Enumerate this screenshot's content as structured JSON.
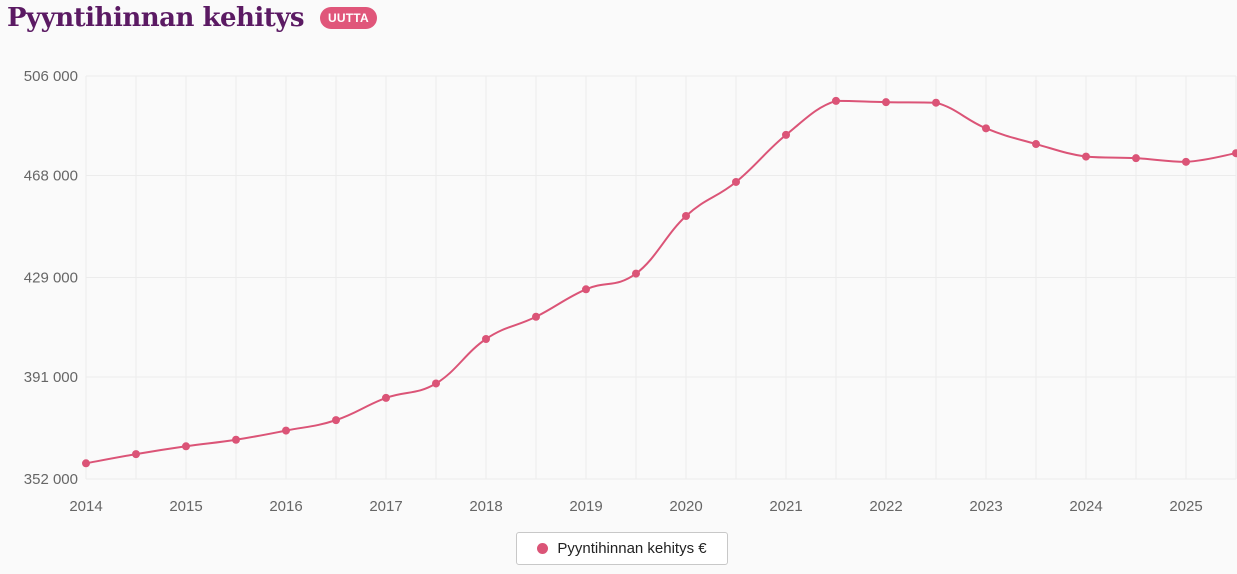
{
  "header": {
    "title": "Pyyntihinnan kehitys",
    "badge": "UUTTA"
  },
  "colors": {
    "line": "#db5477",
    "title": "#5b1a63",
    "badge": "#e0567a",
    "grid": "#ececec",
    "text": "#666666"
  },
  "chart_data": {
    "type": "line",
    "title": "Pyyntihinnan kehitys",
    "xlabel": "",
    "ylabel": "",
    "x_tick_labels": [
      "2014",
      "2015",
      "2016",
      "2017",
      "2018",
      "2019",
      "2020",
      "2021",
      "2022",
      "2023",
      "2024",
      "2025"
    ],
    "y_tick_labels": [
      "352 000",
      "391 000",
      "429 000",
      "468 000",
      "506 000"
    ],
    "y_ticks": [
      352000,
      391000,
      429000,
      468000,
      506000
    ],
    "ylim": [
      352000,
      506000
    ],
    "xlim": [
      2014,
      2025.5
    ],
    "grid": true,
    "legend_position": "bottom-center",
    "series": [
      {
        "name": "Pyyntihinnan kehitys €",
        "x": [
          2014,
          2014.5,
          2015,
          2015.5,
          2016,
          2016.5,
          2017,
          2017.5,
          2018,
          2018.5,
          2019,
          2019.5,
          2020,
          2020.5,
          2021,
          2021.5,
          2022,
          2022.5,
          2023,
          2023.5,
          2024,
          2024.5,
          2025,
          2025.5
        ],
        "values": [
          358000,
          361500,
          364500,
          367000,
          370500,
          374500,
          383000,
          388500,
          405500,
          414000,
          424500,
          430500,
          452500,
          465500,
          483500,
          496500,
          496000,
          495800,
          486000,
          480000,
          475200,
          474600,
          473200,
          476500
        ]
      }
    ]
  },
  "legend": {
    "label": "Pyyntihinnan kehitys €"
  }
}
